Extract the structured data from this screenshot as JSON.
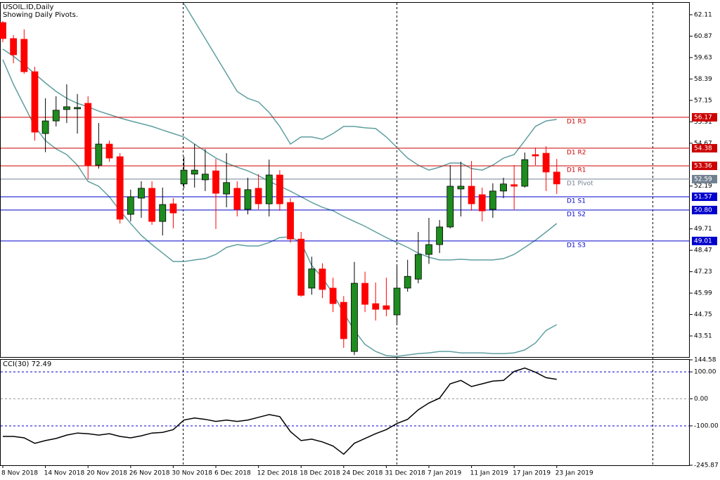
{
  "chart_data": [
    {
      "type": "candlestick",
      "title": "USOIL.ID,Daily",
      "subtitle": "Showing Daily Pivots.",
      "categories": [
        "8 Nov 2018",
        null,
        null,
        null,
        "14 Nov 2018",
        null,
        null,
        null,
        "20 Nov 2018",
        null,
        null,
        null,
        "26 Nov 2018",
        null,
        null,
        null,
        "30 Nov 2018",
        null,
        null,
        null,
        "6 Dec 2018",
        null,
        null,
        null,
        "12 Dec 2018",
        null,
        null,
        null,
        "18 Dec 2018",
        null,
        null,
        null,
        "24 Dec 2018",
        null,
        null,
        null,
        "31 Dec 2018",
        null,
        null,
        null,
        "7 Jan 2019",
        null,
        null,
        null,
        "11 Jan 2019",
        null,
        null,
        null,
        "17 Jan 2019",
        null,
        null,
        null,
        "23 Jan 2019"
      ],
      "open": [
        61.66,
        60.73,
        60.69,
        58.81,
        55.23,
        55.96,
        56.62,
        56.66,
        56.98,
        53.4,
        54.62,
        53.89,
        50.55,
        51.49,
        52.06,
        50.14,
        51.16,
        52.31,
        52.88,
        52.55,
        53.07,
        51.73,
        52.06,
        50.84,
        52.06,
        51.16,
        52.83,
        51.24,
        49.12,
        46.28,
        47.39,
        46.28,
        45.46,
        42.61,
        46.56,
        45.38,
        45.26,
        44.73,
        46.28,
        46.8,
        48.23,
        48.8,
        49.82,
        52.02,
        52.18,
        51.69,
        50.84,
        51.9,
        52.27,
        52.18,
        54.01,
        54.09,
        53.0
      ],
      "high": [
        61.74,
        60.93,
        61.26,
        59.1,
        57.27,
        57.39,
        58.08,
        57.52,
        57.39,
        55.84,
        54.82,
        54.09,
        51.98,
        52.47,
        52.47,
        52.1,
        51.49,
        53.89,
        54.62,
        54.33,
        53.76,
        54.09,
        52.47,
        52.67,
        52.88,
        53.72,
        53.11,
        51.49,
        49.53,
        48.1,
        47.72,
        46.88,
        45.82,
        47.8,
        47.23,
        46.6,
        46.88,
        47.56,
        47.92,
        49.53,
        50.35,
        50.22,
        53.4,
        53.6,
        53.64,
        52.1,
        52.35,
        52.67,
        53.4,
        54.13,
        54.41,
        54.5,
        53.76
      ],
      "low": [
        60.52,
        59.3,
        58.69,
        54.82,
        54.15,
        55.64,
        55.84,
        55.23,
        52.59,
        53.2,
        53.6,
        50.02,
        50.14,
        50.35,
        49.94,
        49.33,
        49.74,
        52.06,
        52.1,
        51.9,
        49.7,
        50.96,
        50.43,
        50.55,
        50.84,
        50.43,
        50.76,
        48.92,
        45.78,
        45.9,
        45.7,
        44.89,
        42.82,
        42.4,
        44.89,
        44.4,
        44.65,
        44.24,
        46.07,
        46.56,
        47.68,
        48.31,
        49.74,
        50.43,
        50.76,
        50.14,
        50.35,
        51.49,
        50.84,
        52.1,
        53.4,
        51.9,
        51.73
      ],
      "close": [
        60.73,
        59.79,
        58.81,
        55.31,
        55.96,
        56.58,
        56.78,
        56.74,
        53.4,
        54.62,
        53.81,
        50.27,
        51.57,
        52.06,
        50.14,
        51.12,
        50.63,
        53.11,
        53.11,
        52.88,
        51.77,
        52.39,
        50.84,
        51.98,
        51.16,
        52.83,
        51.16,
        49.12,
        45.86,
        47.39,
        46.2,
        45.38,
        43.35,
        46.56,
        45.34,
        45.05,
        45.05,
        46.28,
        46.96,
        48.23,
        48.8,
        49.82,
        52.18,
        52.18,
        51.16,
        50.75,
        51.9,
        52.31,
        52.18,
        53.72,
        53.93,
        53.0,
        52.31
      ],
      "up_color": "#1e8c1e",
      "down_color": "#ff0000",
      "series": [
        {
          "color": "#5f9ea0",
          "values": [
            null,
            null,
            null,
            null,
            null,
            null,
            null,
            null,
            null,
            null,
            null,
            null,
            null,
            null,
            null,
            null,
            null,
            62.76,
            61.74,
            60.73,
            59.71,
            58.69,
            57.67,
            57.27,
            57.06,
            56.45,
            55.64,
            54.62,
            55.03,
            55.03,
            54.9,
            55.23,
            55.64,
            55.64,
            55.56,
            55.52,
            55.03,
            54.42,
            53.81,
            53.4,
            53.11,
            53.28,
            53.52,
            53.52,
            53.2,
            53.11,
            53.4,
            53.81,
            54.01,
            54.82,
            55.64,
            55.96,
            56.05
          ]
        },
        {
          "color": "#5f9ea0",
          "values": [
            60.12,
            59.71,
            59.22,
            58.69,
            58.16,
            57.67,
            57.27,
            56.98,
            56.78,
            56.53,
            56.33,
            56.13,
            55.96,
            55.8,
            55.64,
            55.43,
            55.23,
            55.03,
            54.62,
            54.21,
            53.81,
            53.52,
            53.28,
            53.07,
            52.79,
            52.46,
            52.18,
            51.89,
            51.57,
            51.24,
            50.96,
            50.76,
            50.43,
            50.14,
            49.86,
            49.53,
            49.21,
            48.92,
            48.64,
            48.31,
            48.07,
            47.91,
            47.91,
            47.95,
            47.91,
            47.91,
            47.91,
            47.99,
            48.23,
            48.64,
            49.05,
            49.53,
            50.02
          ]
        },
        {
          "color": "#5f9ea0",
          "values": [
            59.51,
            58.08,
            56.86,
            55.64,
            54.82,
            54.34,
            54.01,
            53.4,
            52.46,
            52.18,
            51.57,
            50.76,
            50.02,
            49.33,
            48.8,
            48.31,
            47.82,
            47.82,
            47.91,
            47.99,
            48.23,
            48.64,
            48.8,
            48.72,
            48.72,
            48.92,
            49.21,
            49.25,
            48.92,
            47.58,
            46.89,
            45.95,
            44.85,
            43.83,
            43.02,
            42.61,
            42.37,
            42.33,
            42.41,
            42.49,
            42.53,
            42.61,
            42.61,
            42.53,
            42.53,
            42.53,
            42.49,
            42.49,
            42.53,
            42.7,
            43.1,
            43.83,
            44.16
          ]
        }
      ],
      "pivots": {
        "names": [
          "D1 R3",
          "D1 R2",
          "D1 R1",
          "D1 Pivot",
          "D1 S1",
          "D1 S2",
          "D1 S3"
        ],
        "values": [
          56.17,
          54.38,
          53.36,
          52.59,
          51.57,
          50.8,
          49.01
        ],
        "value_labels": [
          "56.17",
          "54.38",
          "53.36",
          "52.59",
          "51.57",
          "50.80",
          "49.01"
        ],
        "colors": [
          "#cc0000",
          "#cc0000",
          "#cc0000",
          "#708090",
          "#0000cc",
          "#0000cc",
          "#0000cc"
        ]
      },
      "ylim": [
        42.29,
        62.8
      ],
      "yticks": [
        62.11,
        60.87,
        59.63,
        58.39,
        57.15,
        55.91,
        54.67,
        52.19,
        49.71,
        48.47,
        47.23,
        45.99,
        44.75,
        43.51
      ],
      "grid": false
    },
    {
      "type": "line",
      "title": "CCI(30) 72.49",
      "color": "#000000",
      "values": [
        -139.2,
        -139.2,
        -144.3,
        -164.6,
        -154.4,
        -146.8,
        -134.2,
        -126.6,
        -129.1,
        -134.2,
        -129.1,
        -139.2,
        -144.3,
        -136.7,
        -126.6,
        -124.1,
        -113.9,
        -78.5,
        -70.9,
        -76.0,
        -83.5,
        -78.5,
        -83.5,
        -78.5,
        -68.4,
        -58.2,
        -65.8,
        -121.5,
        -154.4,
        -149.4,
        -159.5,
        -174.7,
        -205.1,
        -164.6,
        -146.8,
        -129.1,
        -113.9,
        -91.2,
        -76.0,
        -40.5,
        -15.2,
        2.5,
        55.7,
        68.4,
        45.6,
        55.7,
        65.8,
        68.4,
        101.3,
        114.0,
        98.7,
        78.5,
        72.49
      ],
      "ylim": [
        -245.87,
        144.58
      ],
      "yticks": [
        144.58,
        {
          "value": 100,
          "label": "100.00"
        },
        {
          "value": 0,
          "label": "0.00"
        },
        {
          "value": -100,
          "label": "-100.00"
        },
        -245.87
      ],
      "grid": true
    }
  ]
}
